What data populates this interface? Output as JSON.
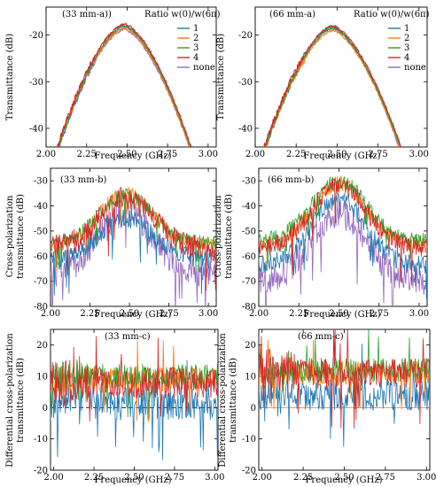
{
  "figure": {
    "legend_title": "Ratio w(0)/w(6π)",
    "series_colors": {
      "1": "#1f77b4",
      "2": "#ff7f0e",
      "3": "#2ca02c",
      "4": "#d62728",
      "none": "#9467bd"
    }
  },
  "chart_data": [
    {
      "type": "line",
      "panel_label": "(33 mm-a))",
      "xlabel": "Frequency (GHz)",
      "ylabel": "Transmittance (dB)",
      "xlim": [
        2.0,
        3.05
      ],
      "ylim": [
        -44,
        -14
      ],
      "xticks": [
        "2.00",
        "2.25",
        "2.50",
        "2.75",
        "3.00"
      ],
      "yticks": [
        "-20",
        "-30",
        "-40"
      ],
      "legend": {
        "title": "Ratio w(0)/w(6π)",
        "entries": [
          "1",
          "2",
          "3",
          "4",
          "none"
        ],
        "placement": "top-right"
      },
      "peak_x": 2.48,
      "series": [
        {
          "name": "1",
          "color": "#1f77b4",
          "peak": -18.2,
          "edge_left": -43.5,
          "edge_right": -42.5
        },
        {
          "name": "2",
          "color": "#ff7f0e",
          "peak": -18.5,
          "edge_left": -43.0,
          "edge_right": -43.0
        },
        {
          "name": "3",
          "color": "#2ca02c",
          "peak": -17.9,
          "edge_left": -43.0,
          "edge_right": -42.5
        },
        {
          "name": "4",
          "color": "#d62728",
          "peak": -17.6,
          "edge_left": -42.5,
          "edge_right": -42.0
        },
        {
          "name": "none",
          "color": "#9467bd",
          "peak": -18.8,
          "edge_left": -43.2,
          "edge_right": -43.2
        }
      ]
    },
    {
      "type": "line",
      "panel_label": "(66 mm-a)",
      "xlabel": "Frequency (GHz)",
      "ylabel": "Transmittance (dB)",
      "xlim": [
        2.0,
        3.05
      ],
      "ylim": [
        -44,
        -14
      ],
      "xticks": [
        "2.00",
        "2.25",
        "2.50",
        "2.75",
        "3.00"
      ],
      "yticks": [
        "-20",
        "-30",
        "-40"
      ],
      "legend": {
        "title": "Ratio w(0)/w(6π)",
        "entries": [
          "1",
          "2",
          "3",
          "4",
          "none"
        ],
        "placement": "top-right"
      },
      "peak_x": 2.47,
      "series": [
        {
          "name": "1",
          "color": "#1f77b4",
          "peak": -18.6,
          "edge_left": -43.0,
          "edge_right": -42.0
        },
        {
          "name": "2",
          "color": "#ff7f0e",
          "peak": -19.0,
          "edge_left": -43.0,
          "edge_right": -42.5
        },
        {
          "name": "3",
          "color": "#2ca02c",
          "peak": -18.3,
          "edge_left": -42.5,
          "edge_right": -42.0
        },
        {
          "name": "4",
          "color": "#d62728",
          "peak": -18.0,
          "edge_left": -42.0,
          "edge_right": -41.5
        },
        {
          "name": "none",
          "color": "#9467bd",
          "peak": -18.2,
          "edge_left": -42.8,
          "edge_right": -42.8
        }
      ]
    },
    {
      "type": "line",
      "panel_label": "(33 mm-b)",
      "xlabel": "Frequency (GHz)",
      "ylabel_lines": [
        "Cross-polarization",
        "transmittance (dB)"
      ],
      "xlim": [
        2.0,
        3.05
      ],
      "ylim": [
        -80,
        -25
      ],
      "xticks": [
        "2.00",
        "2.25",
        "2.50",
        "2.75",
        "3.00"
      ],
      "yticks": [
        "-30",
        "-40",
        "-50",
        "-60",
        "-70",
        "-80"
      ],
      "peak_x": 2.48,
      "series": [
        {
          "name": "1",
          "color": "#1f77b4",
          "peak": -45,
          "base": -61,
          "noise": 4
        },
        {
          "name": "2",
          "color": "#ff7f0e",
          "peak": -35,
          "base": -56,
          "noise": 3
        },
        {
          "name": "3",
          "color": "#2ca02c",
          "peak": -36,
          "base": -55,
          "noise": 3
        },
        {
          "name": "4",
          "color": "#d62728",
          "peak": -37,
          "base": -57,
          "noise": 5
        },
        {
          "name": "none",
          "color": "#9467bd",
          "peak": -43,
          "base": -67,
          "noise": 6
        }
      ]
    },
    {
      "type": "line",
      "panel_label": "(66 mm-b)",
      "xlabel": "Frequency (GHz)",
      "ylabel_lines": [
        "Cross-polarization",
        "transmittance (dB)"
      ],
      "xlim": [
        2.0,
        3.05
      ],
      "ylim": [
        -80,
        -25
      ],
      "xticks": [
        "2.00",
        "2.25",
        "2.50",
        "2.75",
        "3.00"
      ],
      "yticks": [
        "-30",
        "-40",
        "-50",
        "-60",
        "-70",
        "-80"
      ],
      "peak_x": 2.5,
      "series": [
        {
          "name": "1",
          "color": "#1f77b4",
          "peak": -38,
          "base": -64,
          "noise": 4
        },
        {
          "name": "2",
          "color": "#ff7f0e",
          "peak": -31,
          "base": -56,
          "noise": 3
        },
        {
          "name": "3",
          "color": "#2ca02c",
          "peak": -30,
          "base": -54,
          "noise": 3
        },
        {
          "name": "4",
          "color": "#d62728",
          "peak": -32,
          "base": -57,
          "noise": 4
        },
        {
          "name": "none",
          "color": "#9467bd",
          "peak": -43,
          "base": -70,
          "noise": 6
        }
      ]
    },
    {
      "type": "line",
      "panel_label": "(33 mm-c)",
      "xlabel": "Frequency (GHz)",
      "ylabel_lines": [
        "Differential cross-polarization",
        "transmittance (dB)"
      ],
      "xlim": [
        1.98,
        3.02
      ],
      "ylim": [
        -20,
        25
      ],
      "xticks": [
        "2.00",
        "2.25",
        "2.50",
        "2.75",
        "3.00"
      ],
      "yticks": [
        "20",
        "10",
        "0",
        "-10",
        "-20"
      ],
      "zero_line": {
        "y": 0,
        "style": "dashed"
      },
      "series": [
        {
          "name": "1",
          "color": "#1f77b4",
          "level": 2,
          "noise": 6
        },
        {
          "name": "2",
          "color": "#ff7f0e",
          "level": 9,
          "noise": 4
        },
        {
          "name": "3",
          "color": "#2ca02c",
          "level": 10,
          "noise": 4
        },
        {
          "name": "4",
          "color": "#d62728",
          "level": 8,
          "noise": 5
        }
      ]
    },
    {
      "type": "line",
      "panel_label": "(66 mm-c)",
      "xlabel": "Frequency (GHz)",
      "ylabel_lines": [
        "Differential cross-polarization",
        "transmittance (dB)"
      ],
      "xlim": [
        1.98,
        3.02
      ],
      "ylim": [
        -20,
        25
      ],
      "xticks": [
        "2.00",
        "2.25",
        "2.50",
        "2.75",
        "3.00"
      ],
      "yticks": [
        "20",
        "10",
        "0",
        "-10",
        "-20"
      ],
      "zero_line": {
        "y": 0,
        "style": "solid",
        "color": "#ff7f0e"
      },
      "series": [
        {
          "name": "1",
          "color": "#1f77b4",
          "level": 4,
          "noise": 5
        },
        {
          "name": "2",
          "color": "#ff7f0e",
          "level": 11,
          "noise": 4
        },
        {
          "name": "3",
          "color": "#2ca02c",
          "level": 12,
          "noise": 4
        },
        {
          "name": "4",
          "color": "#d62728",
          "level": 11,
          "noise": 5
        }
      ]
    }
  ]
}
